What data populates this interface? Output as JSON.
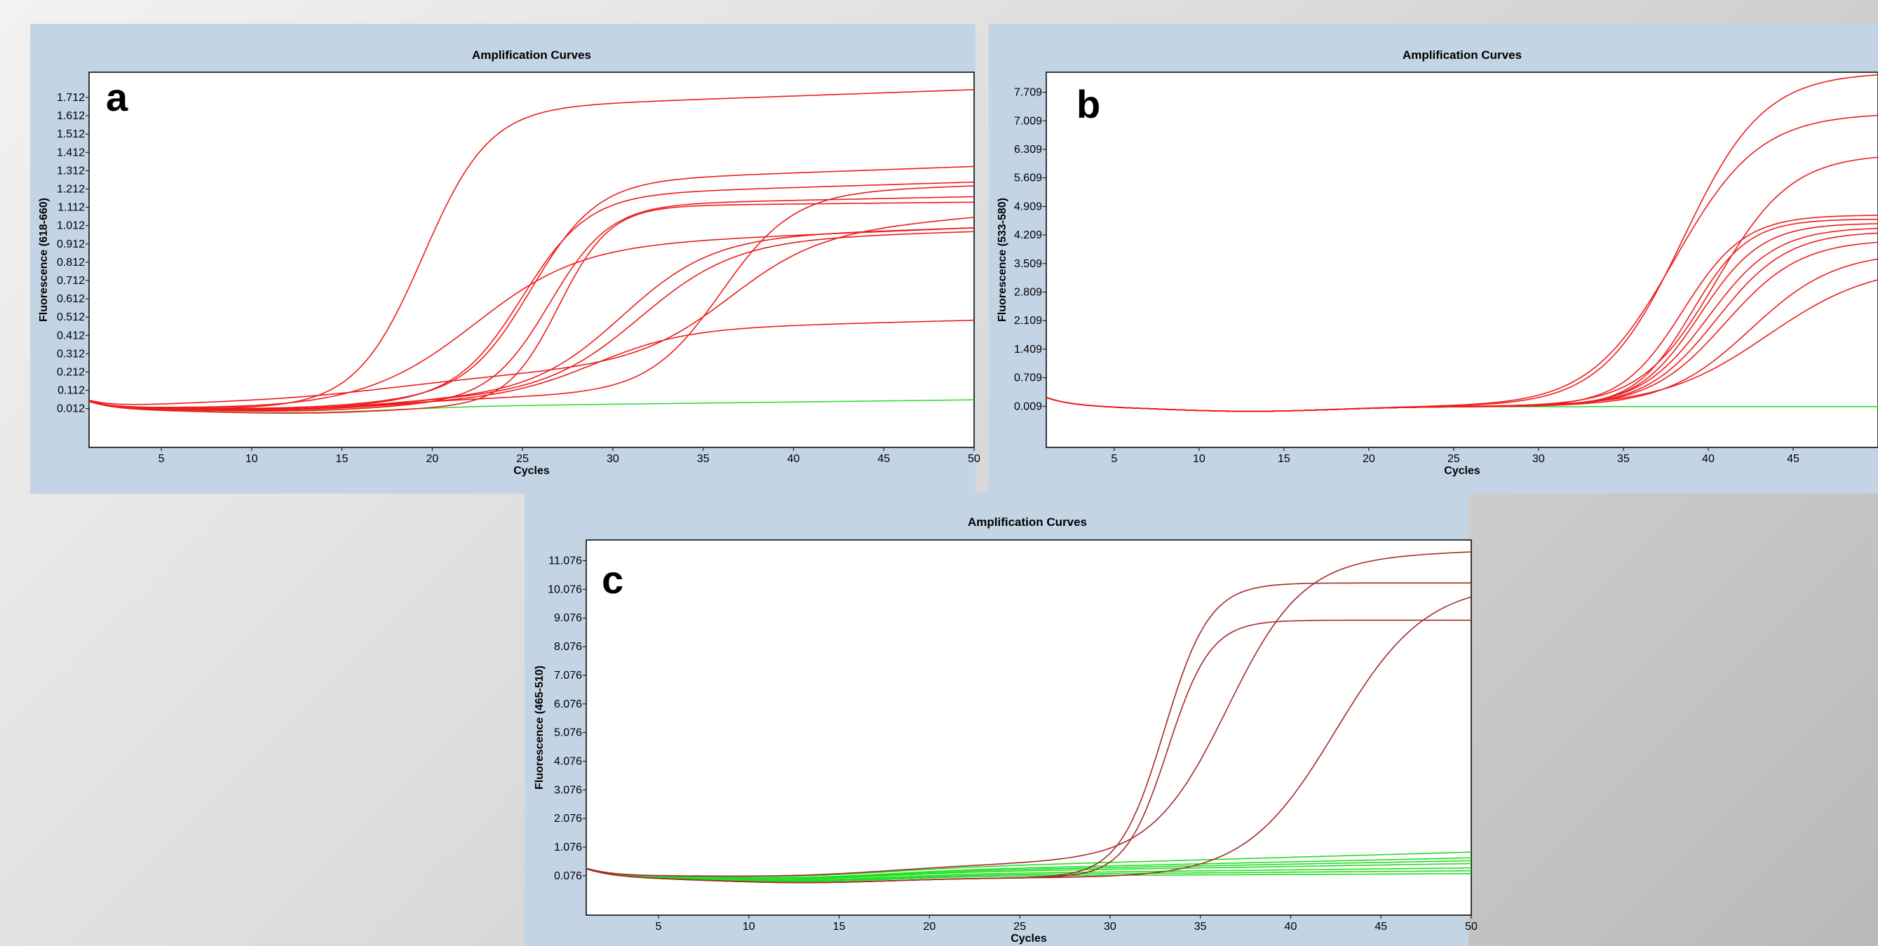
{
  "chart_data": [
    {
      "panel_label": "a",
      "type": "line",
      "title": "Amplification Curves",
      "xlabel": "Cycles",
      "ylabel": "Fluorescence (618-660)",
      "xlim": [
        1,
        50
      ],
      "ylim": [
        -0.2,
        1.85
      ],
      "xticks": [
        5,
        10,
        15,
        20,
        25,
        30,
        35,
        40,
        45,
        50
      ],
      "yticks": [
        "0.012",
        "0.112",
        "0.212",
        "0.312",
        "0.412",
        "0.512",
        "0.612",
        "0.712",
        "0.812",
        "0.912",
        "1.012",
        "1.112",
        "1.212",
        "1.312",
        "1.412",
        "1.512",
        "1.612",
        "1.712"
      ],
      "grid": false,
      "legend": "none",
      "colors": {
        "positive": "#ee1c1c",
        "negative": "#33dd33"
      },
      "series": [
        {
          "color": "#ee1c1c",
          "ct": 19.5,
          "plateau": 1.58,
          "k": 0.55,
          "slope": 0.0035
        },
        {
          "color": "#ee1c1c",
          "ct": 25.5,
          "plateau": 1.16,
          "k": 0.55,
          "slope": 0.0035
        },
        {
          "color": "#ee1c1c",
          "ct": 25.0,
          "plateau": 1.1,
          "k": 0.55,
          "slope": 0.003
        },
        {
          "color": "#ee1c1c",
          "ct": 26.5,
          "plateau": 1.07,
          "k": 0.6,
          "slope": 0.002
        },
        {
          "color": "#ee1c1c",
          "ct": 27.0,
          "plateau": 1.09,
          "k": 0.7,
          "slope": 0.001
        },
        {
          "color": "#ee1c1c",
          "ct": 22.5,
          "plateau": 0.8,
          "k": 0.35,
          "slope": 0.004
        },
        {
          "color": "#ee1c1c",
          "ct": 30.5,
          "plateau": 0.85,
          "k": 0.4,
          "slope": 0.003
        },
        {
          "color": "#ee1c1c",
          "ct": 31.5,
          "plateau": 0.83,
          "k": 0.38,
          "slope": 0.003
        },
        {
          "color": "#ee1c1c",
          "ct": 29.0,
          "plateau": 0.37,
          "k": 0.4,
          "slope": 0.0025
        },
        {
          "color": "#ee1c1c",
          "ct": 36.0,
          "plateau": 1.08,
          "k": 0.5,
          "slope": 0.003
        },
        {
          "color": "#ee1c1c",
          "ct": 36.5,
          "plateau": 0.66,
          "k": 0.4,
          "slope": 0.008
        },
        {
          "color": "#33dd33",
          "ct": 100,
          "plateau": 0.0,
          "k": 0.5,
          "slope": 0.0012
        }
      ]
    },
    {
      "panel_label": "b",
      "type": "line",
      "title": "Amplification Curves",
      "xlabel": "Cycles",
      "ylabel": "Fluorescence (533-580)",
      "xlim": [
        1,
        50
      ],
      "ylim": [
        -1.0,
        8.2
      ],
      "xticks": [
        5,
        10,
        15,
        20,
        25,
        30,
        35,
        40,
        45
      ],
      "yticks": [
        "0.009",
        "0.709",
        "1.409",
        "2.109",
        "2.809",
        "3.509",
        "4.209",
        "4.909",
        "5.609",
        "6.309",
        "7.009",
        "7.709"
      ],
      "grid": false,
      "legend": "none",
      "colors": {
        "positive": "#ee1c1c",
        "negative": "#33dd33"
      },
      "series": [
        {
          "color": "#ee1c1c",
          "ct": 38.5,
          "plateau": 8.2,
          "k": 0.42,
          "slope": 0
        },
        {
          "color": "#ee1c1c",
          "ct": 38.0,
          "plateau": 7.2,
          "k": 0.4,
          "slope": 0
        },
        {
          "color": "#ee1c1c",
          "ct": 40.5,
          "plateau": 6.2,
          "k": 0.45,
          "slope": 0
        },
        {
          "color": "#ee1c1c",
          "ct": 38.5,
          "plateau": 4.7,
          "k": 0.55,
          "slope": 0
        },
        {
          "color": "#ee1c1c",
          "ct": 39.0,
          "plateau": 4.6,
          "k": 0.6,
          "slope": 0
        },
        {
          "color": "#ee1c1c",
          "ct": 39.5,
          "plateau": 4.5,
          "k": 0.55,
          "slope": 0
        },
        {
          "color": "#ee1c1c",
          "ct": 40.0,
          "plateau": 4.4,
          "k": 0.5,
          "slope": 0
        },
        {
          "color": "#ee1c1c",
          "ct": 40.5,
          "plateau": 4.3,
          "k": 0.48,
          "slope": 0
        },
        {
          "color": "#ee1c1c",
          "ct": 41.0,
          "plateau": 4.1,
          "k": 0.45,
          "slope": 0
        },
        {
          "color": "#ee1c1c",
          "ct": 42.5,
          "plateau": 3.8,
          "k": 0.4,
          "slope": 0
        },
        {
          "color": "#ee1c1c",
          "ct": 43.5,
          "plateau": 3.5,
          "k": 0.32,
          "slope": 0
        },
        {
          "color": "#33dd33",
          "ct": 100,
          "plateau": 0.0,
          "k": 0.5,
          "slope": 0
        }
      ]
    },
    {
      "panel_label": "c",
      "type": "line",
      "title": "Amplification Curves",
      "xlabel": "Cycles",
      "ylabel": "Fluorescence (465-510)",
      "xlim": [
        1,
        50
      ],
      "ylim": [
        -1.3,
        11.8
      ],
      "xticks": [
        5,
        10,
        15,
        20,
        25,
        30,
        35,
        40,
        45,
        50
      ],
      "yticks": [
        "0.076",
        "1.076",
        "2.076",
        "3.076",
        "4.076",
        "5.076",
        "6.076",
        "7.076",
        "8.076",
        "9.076",
        "10.076",
        "11.076"
      ],
      "grid": false,
      "legend": "none",
      "colors": {
        "positive": "#a52a2a",
        "negative": "#22dd22"
      },
      "series": [
        {
          "color": "#a52a2a",
          "ct": 33.0,
          "plateau": 10.3,
          "k": 0.8,
          "slope": 0
        },
        {
          "color": "#a52a2a",
          "ct": 33.2,
          "plateau": 9.0,
          "k": 0.85,
          "slope": 0
        },
        {
          "color": "#a52a2a",
          "ct": 36.5,
          "plateau": 10.4,
          "k": 0.48,
          "slope": 0.02
        },
        {
          "color": "#a52a2a",
          "ct": 42.5,
          "plateau": 10.3,
          "k": 0.4,
          "slope": 0
        },
        {
          "color": "#22dd22",
          "ct": 100,
          "plateau": 0.0,
          "k": 0.5,
          "slope": 0.012
        },
        {
          "color": "#22dd22",
          "ct": 100,
          "plateau": 0.0,
          "k": 0.5,
          "slope": 0.018
        },
        {
          "color": "#22dd22",
          "ct": 100,
          "plateau": 0.0,
          "k": 0.5,
          "slope": 0.007
        },
        {
          "color": "#22dd22",
          "ct": 100,
          "plateau": 0.0,
          "k": 0.5,
          "slope": 0.01
        },
        {
          "color": "#22dd22",
          "ct": 100,
          "plateau": 0.0,
          "k": 0.5,
          "slope": 0.003
        },
        {
          "color": "#22dd22",
          "ct": 100,
          "plateau": 0.0,
          "k": 0.5,
          "slope": 0.014
        },
        {
          "color": "#22dd22",
          "ct": 100,
          "plateau": 0.0,
          "k": 0.5,
          "slope": 0.005
        }
      ]
    }
  ]
}
